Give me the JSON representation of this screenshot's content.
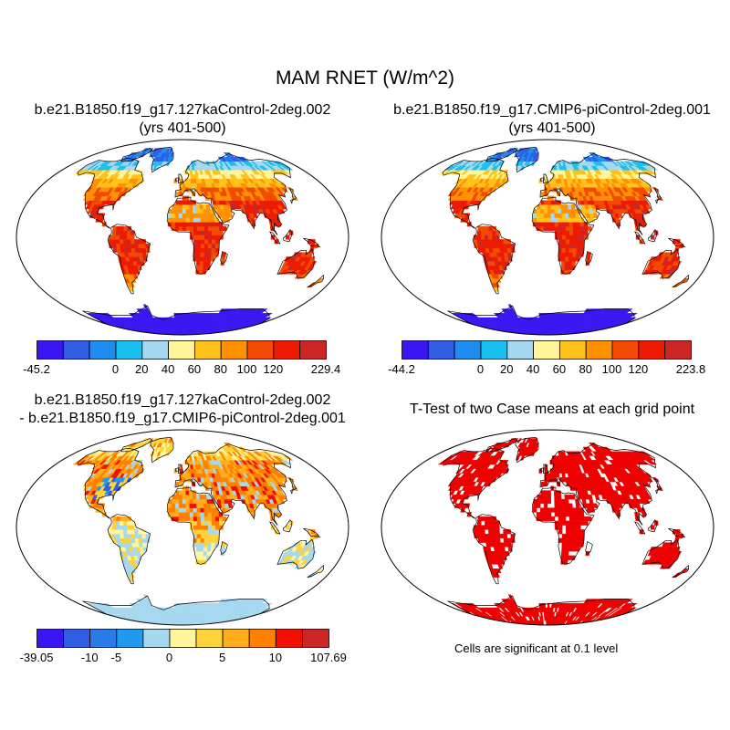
{
  "main_title": "MAM RNET (W/m^2)",
  "panels": [
    {
      "title_line1": "b.e21.B1850.f19_g17.127kaControl-2deg.002",
      "title_line2": "(yrs 401-500)",
      "type": "field"
    },
    {
      "title_line1": "b.e21.B1850.f19_g17.CMIP6-piControl-2deg.001",
      "title_line2": "(yrs 401-500)",
      "type": "field"
    },
    {
      "title_line1": "b.e21.B1850.f19_g17.127kaControl-2deg.002",
      "title_line2": "- b.e21.B1850.f19_g17.CMIP6-piControl-2deg.001",
      "type": "difference"
    },
    {
      "title_line1": "T-Test of two Case means at each grid point",
      "title_line2": "",
      "type": "ttest"
    }
  ],
  "colorbars": [
    {
      "labels": [
        "-45.2",
        "0",
        "20",
        "40",
        "60",
        "80",
        "100",
        "120",
        "229.4"
      ]
    },
    {
      "labels": [
        "-44.2",
        "0",
        "20",
        "40",
        "60",
        "80",
        "100",
        "120",
        "223.8"
      ]
    },
    {
      "labels": [
        "-39.05",
        "-10",
        "-5",
        "0",
        "5",
        "10",
        "107.69"
      ]
    }
  ],
  "colors": {
    "absolute_scale": [
      "#3a16f2",
      "#2f5ee3",
      "#1f8cf0",
      "#19c0f0",
      "#a6d8f0",
      "#fff59a",
      "#ffc21a",
      "#ff9000",
      "#f24a00",
      "#ee1a00",
      "#cc2525"
    ],
    "difference_scale": [
      "#3a16f2",
      "#2f5ee3",
      "#2a7ae8",
      "#1f9af0",
      "#a6d8f0",
      "#fff59a",
      "#ffd23a",
      "#ffad1a",
      "#ff8000",
      "#f01000",
      "#cc2525"
    ],
    "significance": "#ee0000"
  },
  "significance_note": "Cells are significant at 0.1 level"
}
